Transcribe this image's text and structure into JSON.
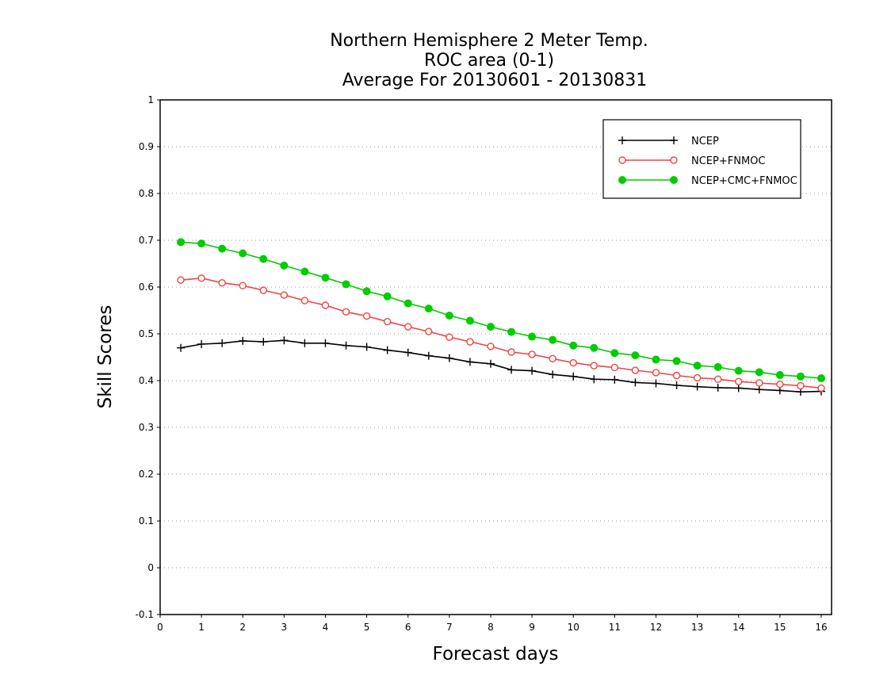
{
  "chart_data": {
    "type": "line",
    "title_lines": [
      "Northern Hemisphere 2 Meter Temp.",
      "ROC area (0-1)",
      "Average For 20130601 - 20130831"
    ],
    "xlabel": "Forecast days",
    "ylabel": "Skill Scores",
    "xlim": [
      0,
      16.25
    ],
    "ylim": [
      -0.1,
      1
    ],
    "xticks": [
      0,
      1,
      2,
      3,
      4,
      5,
      6,
      7,
      8,
      9,
      10,
      11,
      12,
      13,
      14,
      15,
      16
    ],
    "yticks": [
      -0.1,
      0,
      0.1,
      0.2,
      0.3,
      0.4,
      0.5,
      0.6,
      0.7,
      0.8,
      0.9,
      1
    ],
    "ytick_labels": [
      "-0.1",
      "0",
      "0.1",
      "0.2",
      "0.3",
      "0.4",
      "0.5",
      "0.6",
      "0.7",
      "0.8",
      "0.9",
      "1"
    ],
    "grid": true,
    "legend_position": "top-right",
    "x": [
      0.5,
      1,
      1.5,
      2,
      2.5,
      3,
      3.5,
      4,
      4.5,
      5,
      5.5,
      6,
      6.5,
      7,
      7.5,
      8,
      8.5,
      9,
      9.5,
      10,
      10.5,
      11,
      11.5,
      12,
      12.5,
      13,
      13.5,
      14,
      14.5,
      15,
      15.5,
      16
    ],
    "series": [
      {
        "name": "NCEP",
        "color": "#000000",
        "marker": "plus",
        "values": [
          0.47,
          0.478,
          0.48,
          0.485,
          0.483,
          0.486,
          0.48,
          0.48,
          0.475,
          0.472,
          0.465,
          0.46,
          0.453,
          0.448,
          0.44,
          0.436,
          0.423,
          0.421,
          0.413,
          0.409,
          0.403,
          0.402,
          0.396,
          0.394,
          0.39,
          0.387,
          0.385,
          0.384,
          0.381,
          0.379,
          0.376,
          0.377
        ]
      },
      {
        "name": "NCEP+FNMOC",
        "color": "#ee4444",
        "marker": "open-circle",
        "values": [
          0.615,
          0.619,
          0.609,
          0.603,
          0.593,
          0.583,
          0.571,
          0.561,
          0.547,
          0.538,
          0.526,
          0.515,
          0.505,
          0.493,
          0.483,
          0.473,
          0.461,
          0.456,
          0.447,
          0.438,
          0.432,
          0.428,
          0.422,
          0.417,
          0.411,
          0.406,
          0.403,
          0.398,
          0.395,
          0.392,
          0.389,
          0.384
        ]
      },
      {
        "name": "NCEP+CMC+FNMOC",
        "color": "#00cc00",
        "marker": "filled-circle",
        "values": [
          0.696,
          0.693,
          0.682,
          0.672,
          0.66,
          0.646,
          0.633,
          0.62,
          0.606,
          0.591,
          0.58,
          0.565,
          0.554,
          0.539,
          0.528,
          0.515,
          0.504,
          0.494,
          0.487,
          0.475,
          0.47,
          0.459,
          0.454,
          0.445,
          0.442,
          0.432,
          0.429,
          0.421,
          0.418,
          0.412,
          0.409,
          0.405
        ]
      }
    ]
  }
}
